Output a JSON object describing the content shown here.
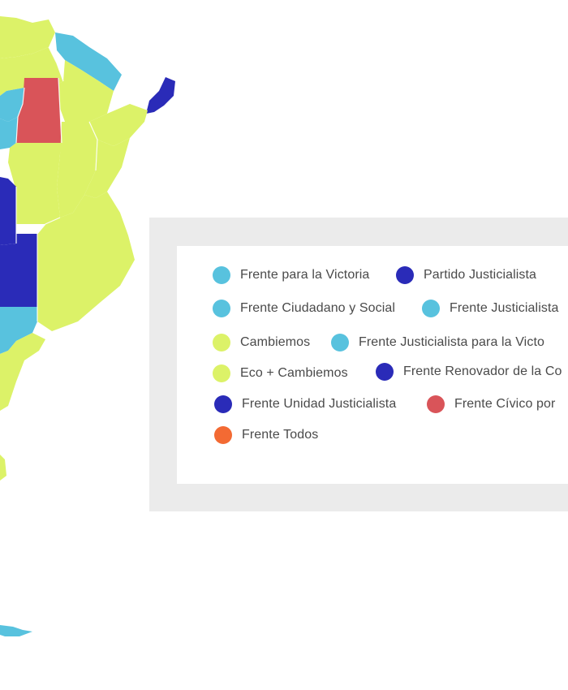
{
  "colors": {
    "fpv_light_blue": "#58c2de",
    "pj_dark_blue": "#2a2bb8",
    "cambiemos_yellow_green": "#dcf268",
    "civico_red": "#d95459",
    "todos_orange": "#f36a33",
    "legend_frame": "#ebebeb",
    "legend_text": "#4a4a4a"
  },
  "legend": {
    "items": [
      {
        "label": "Frente para la Victoria",
        "color": "#58c2de"
      },
      {
        "label": "Partido Justicialista",
        "color": "#2a2bb8"
      },
      {
        "label": "Frente Ciudadano y Social",
        "color": "#58c2de"
      },
      {
        "label": "Frente Justicialista",
        "color": "#58c2de"
      },
      {
        "label": "Cambiemos",
        "color": "#dcf268"
      },
      {
        "label": "Frente Justicialista para la Victo",
        "color": "#58c2de"
      },
      {
        "label": "Eco + Cambiemos",
        "color": "#dcf268"
      },
      {
        "label": "Frente Renovador de la Co",
        "color": "#2a2bb8"
      },
      {
        "label": "Frente Unidad Justicialista",
        "color": "#2a2bb8"
      },
      {
        "label": "Frente Cívico por",
        "color": "#d95459"
      },
      {
        "label": "Frente Todos",
        "color": "#f36a33"
      }
    ]
  },
  "map": {
    "regions": [
      {
        "name": "jujuy",
        "color": "#dcf268"
      },
      {
        "name": "salta-north",
        "color": "#dcf268"
      },
      {
        "name": "formosa",
        "color": "#58c2de"
      },
      {
        "name": "misiones",
        "color": "#2a2bb8"
      },
      {
        "name": "chaco",
        "color": "#dcf268"
      },
      {
        "name": "tucuman",
        "color": "#58c2de"
      },
      {
        "name": "santiago-del-estero",
        "color": "#d95459"
      },
      {
        "name": "catamarca",
        "color": "#58c2de"
      },
      {
        "name": "corrientes",
        "color": "#dcf268"
      },
      {
        "name": "santa-fe",
        "color": "#dcf268"
      },
      {
        "name": "entre-rios",
        "color": "#dcf268"
      },
      {
        "name": "cordoba",
        "color": "#dcf268"
      },
      {
        "name": "san-luis",
        "color": "#2a2bb8"
      },
      {
        "name": "la-pampa",
        "color": "#2a2bb8"
      },
      {
        "name": "buenos-aires",
        "color": "#dcf268"
      },
      {
        "name": "rio-negro",
        "color": "#58c2de"
      },
      {
        "name": "chubut",
        "color": "#dcf268"
      },
      {
        "name": "santa-cruz",
        "color": "#dcf268"
      },
      {
        "name": "tierra-del-fuego",
        "color": "#58c2de"
      }
    ]
  }
}
